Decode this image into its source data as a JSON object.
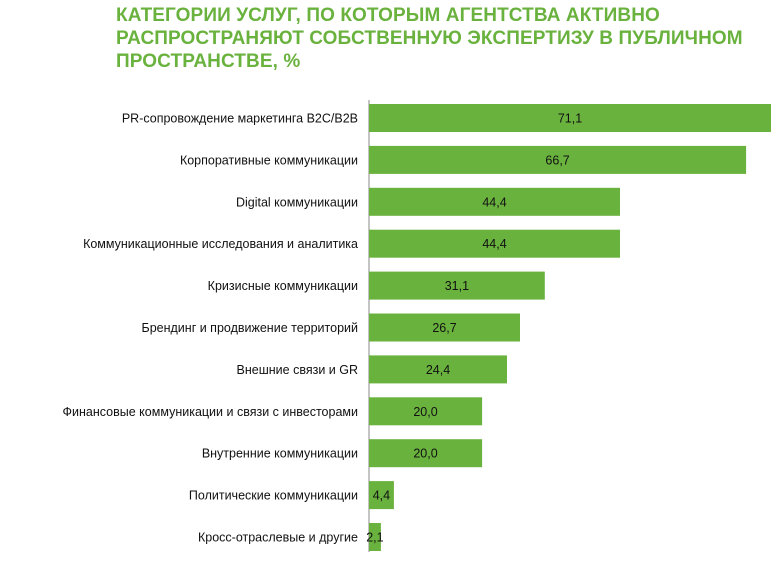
{
  "chart_data": {
    "type": "bar",
    "orientation": "horizontal",
    "title": "КАТЕГОРИИ УСЛУГ, ПО КОТОРЫМ АГЕНТСТВА АКТИВНО РАСПРОСТРАНЯЮТ СОБСТВЕННУЮ ЭКСПЕРТИЗУ В ПУБЛИЧНОМ ПРОСТРАНСТВЕ, %",
    "categories": [
      "PR-сопровождение маркетинга B2C/B2B",
      "Корпоративные коммуникации",
      "Digital коммуникации",
      "Коммуникационные исследования и аналитика",
      "Кризисные коммуникации",
      "Брендинг и продвижение территорий",
      "Внешние связи и GR",
      "Финансовые коммуникации и связи с инвесторами",
      "Внутренние коммуникации",
      "Политические коммуникации",
      "Кросс-отраслевые и другие"
    ],
    "values": [
      71.1,
      66.7,
      44.4,
      44.4,
      31.1,
      26.7,
      24.4,
      20.0,
      20.0,
      4.4,
      2.1
    ],
    "value_labels": [
      "71,1",
      "66,7",
      "44,4",
      "44,4",
      "31,1",
      "26,7",
      "24,4",
      "20,0",
      "20,0",
      "4,4",
      "2,1"
    ],
    "xlim": [
      0,
      71.1
    ],
    "grid": false,
    "legend": "none",
    "bar_color": "#6ab23e",
    "title_color": "#6ab23e"
  }
}
